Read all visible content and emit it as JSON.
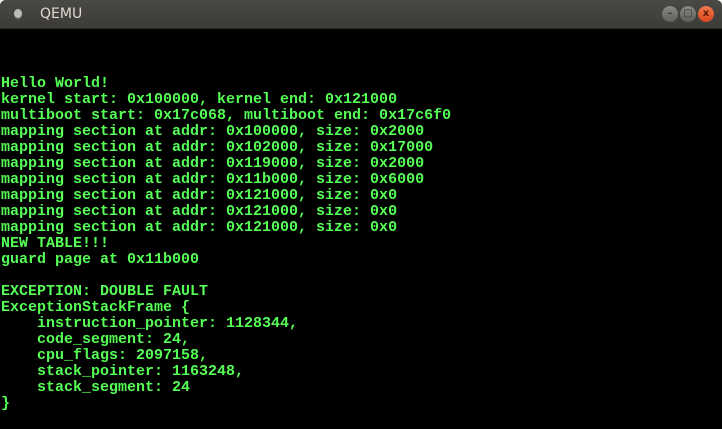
{
  "window": {
    "title": "QEMU",
    "buttons": {
      "minimize": "–",
      "maximize": "□",
      "close": "x"
    }
  },
  "console": {
    "color": "#55ff55",
    "lines": [
      "Hello World!",
      "kernel start: 0x100000, kernel end: 0x121000",
      "multiboot start: 0x17c068, multiboot end: 0x17c6f0",
      "mapping section at addr: 0x100000, size: 0x2000",
      "mapping section at addr: 0x102000, size: 0x17000",
      "mapping section at addr: 0x119000, size: 0x2000",
      "mapping section at addr: 0x11b000, size: 0x6000",
      "mapping section at addr: 0x121000, size: 0x0",
      "mapping section at addr: 0x121000, size: 0x0",
      "mapping section at addr: 0x121000, size: 0x0",
      "NEW TABLE!!!",
      "guard page at 0x11b000",
      "",
      "EXCEPTION: DOUBLE FAULT",
      "ExceptionStackFrame {",
      "    instruction_pointer: 1128344,",
      "    code_segment: 24,",
      "    cpu_flags: 2097158,",
      "    stack_pointer: 1163248,",
      "    stack_segment: 24",
      "}"
    ]
  }
}
